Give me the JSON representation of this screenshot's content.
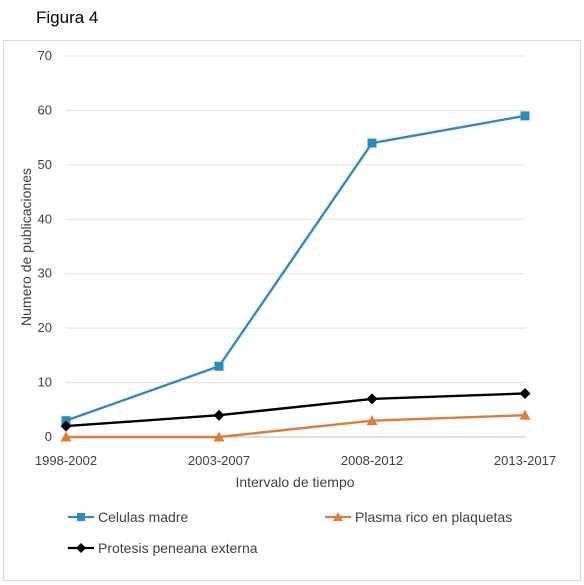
{
  "figure_label": "Figura 4",
  "chart_data": {
    "type": "line",
    "title": "",
    "xlabel": "Intervalo de tiempo",
    "ylabel": "Numero de publicaciones",
    "categories": [
      "1998-2002",
      "2003-2007",
      "2008-2012",
      "2013-2017"
    ],
    "ylim": [
      0,
      70
    ],
    "yticks": [
      0,
      10,
      20,
      30,
      40,
      50,
      60,
      70
    ],
    "grid": true,
    "legend_position": "bottom",
    "series": [
      {
        "name": "Celulas madre",
        "values": [
          3,
          13,
          54,
          59
        ],
        "color": "#2e8bc0",
        "marker": "square"
      },
      {
        "name": "Plasma rico en plaquetas",
        "values": [
          0,
          0,
          3,
          4
        ],
        "color": "#e07b39",
        "marker": "triangle"
      },
      {
        "name": "Protesis peneana externa",
        "values": [
          2,
          4,
          7,
          8
        ],
        "color": "#000000",
        "marker": "diamond"
      }
    ]
  }
}
